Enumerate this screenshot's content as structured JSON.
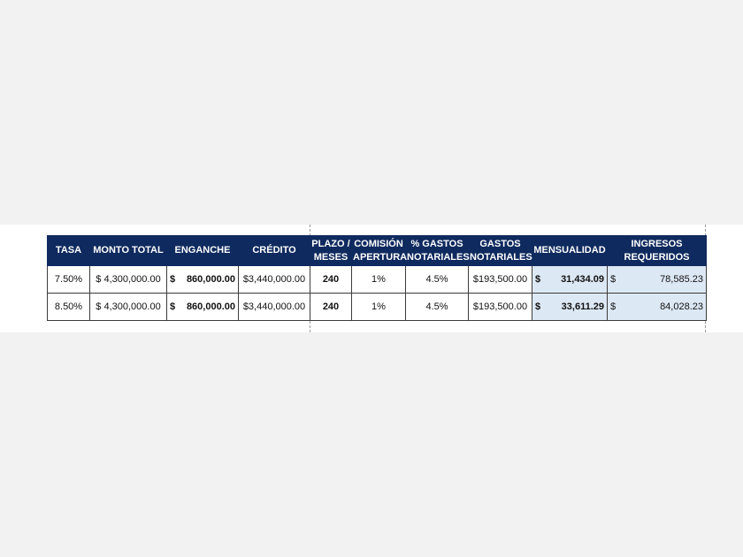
{
  "table": {
    "headers": [
      "TASA",
      "MONTO TOTAL",
      "ENGANCHE",
      "CRÉDITO",
      "PLAZO / MESES",
      "COMISIÓN APERTURA",
      "% GASTOS NOTARIALES",
      "GASTOS NOTARIALES",
      "MENSUALIDAD",
      "INGRESOS REQUERIDOS"
    ],
    "rows": [
      {
        "tasa": "7.50%",
        "monto_total": "$  4,300,000.00",
        "enganche_symbol": "$",
        "enganche": "860,000.00",
        "credito": "$3,440,000.00",
        "plazo": "240",
        "comision": "1%",
        "pct_gastos": "4.5%",
        "gastos": "$193,500.00",
        "mensualidad_symbol": "$",
        "mensualidad": "31,434.09",
        "ingresos_symbol": "$",
        "ingresos": "78,585.23"
      },
      {
        "tasa": "8.50%",
        "monto_total": "$  4,300,000.00",
        "enganche_symbol": "$",
        "enganche": "860,000.00",
        "credito": "$3,440,000.00",
        "plazo": "240",
        "comision": "1%",
        "pct_gastos": "4.5%",
        "gastos": "$193,500.00",
        "mensualidad_symbol": "$",
        "mensualidad": "33,611.29",
        "ingresos_symbol": "$",
        "ingresos": "84,028.23"
      }
    ]
  },
  "colors": {
    "header_background": "#0f2a5e",
    "header_text": "#ffffff",
    "highlight_cell": "#dde8f5"
  }
}
